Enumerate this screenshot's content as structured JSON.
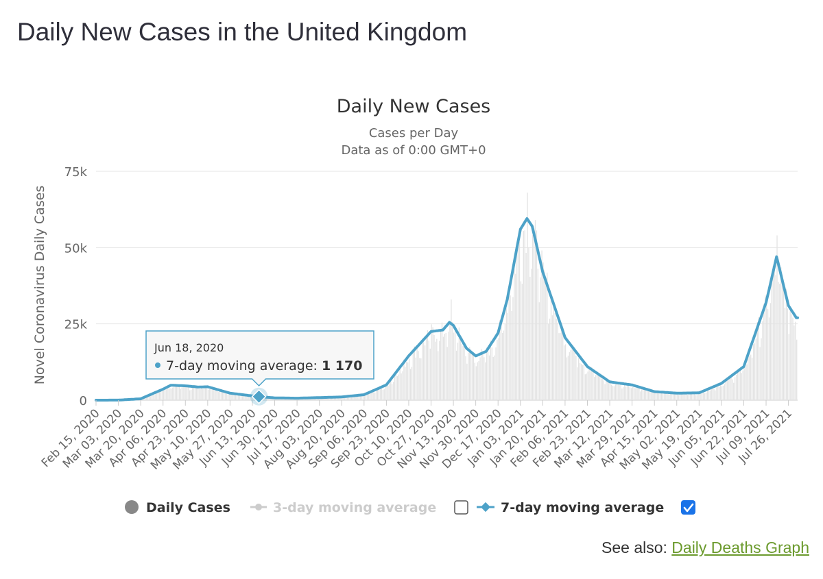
{
  "page_title": "Daily New Cases in the United Kingdom",
  "see_also": {
    "prefix": "See also:",
    "link_text": "Daily Deaths Graph"
  },
  "colors": {
    "bars": "#e3e3e3",
    "line": "#4da2c8",
    "grid": "#e6e6e6",
    "legend_active": "#333333",
    "legend_inactive": "#cccccc",
    "checkbox_checked": "#1a73e8"
  },
  "tooltip": {
    "date": "Jun 18, 2020",
    "series": "7-day moving average",
    "value_text": "1 170",
    "x": "2020-06-18",
    "y": 1170
  },
  "legend": [
    {
      "label": "Daily Cases",
      "marker": "circle",
      "active": true,
      "checkbox": null
    },
    {
      "label": "3-day moving average",
      "marker": "circle-line",
      "active": false,
      "checkbox": false
    },
    {
      "label": "7-day moving average",
      "marker": "diamond-line",
      "active": true,
      "checkbox": true
    }
  ],
  "chart_data": {
    "type": "bar",
    "title": "Daily New Cases",
    "subtitle": [
      "Cases per Day",
      "Data as of 0:00 GMT+0"
    ],
    "xlabel": "",
    "ylabel": "Novel Coronavirus Daily Cases",
    "ylim": [
      0,
      75000
    ],
    "yticks": [
      0,
      25000,
      50000,
      75000
    ],
    "ytick_labels": [
      "0",
      "25k",
      "50k",
      "75k"
    ],
    "xlim": [
      "2020-02-15",
      "2021-08-02"
    ],
    "x_tick_labels": [
      "Feb 15, 2020",
      "Mar 03, 2020",
      "Mar 20, 2020",
      "Apr 06, 2020",
      "Apr 23, 2020",
      "May 10, 2020",
      "May 27, 2020",
      "Jun 13, 2020",
      "Jun 30, 2020",
      "Jul 17, 2020",
      "Aug 03, 2020",
      "Aug 20, 2020",
      "Sep 06, 2020",
      "Sep 23, 2020",
      "Oct 10, 2020",
      "Oct 27, 2020",
      "Nov 13, 2020",
      "Nov 30, 2020",
      "Dec 17, 2020",
      "Jan 03, 2021",
      "Jan 20, 2021",
      "Feb 06, 2021",
      "Feb 23, 2021",
      "Mar 12, 2021",
      "Mar 29, 2021",
      "Apr 15, 2021",
      "May 02, 2021",
      "May 19, 2021",
      "Jun 05, 2021",
      "Jun 22, 2021",
      "Jul 09, 2021",
      "Jul 26, 2021"
    ],
    "grid": true,
    "legend_position": "bottom",
    "series": [
      {
        "name": "7-day moving average",
        "kind": "line",
        "points": [
          [
            "2020-02-15",
            0
          ],
          [
            "2020-03-03",
            20
          ],
          [
            "2020-03-20",
            450
          ],
          [
            "2020-04-06",
            3600
          ],
          [
            "2020-04-12",
            4900
          ],
          [
            "2020-04-23",
            4700
          ],
          [
            "2020-05-03",
            4300
          ],
          [
            "2020-05-10",
            4400
          ],
          [
            "2020-05-27",
            2300
          ],
          [
            "2020-06-13",
            1400
          ],
          [
            "2020-06-18",
            1170
          ],
          [
            "2020-06-30",
            750
          ],
          [
            "2020-07-17",
            650
          ],
          [
            "2020-08-03",
            850
          ],
          [
            "2020-08-20",
            1050
          ],
          [
            "2020-09-06",
            1800
          ],
          [
            "2020-09-23",
            5000
          ],
          [
            "2020-10-10",
            14500
          ],
          [
            "2020-10-27",
            22500
          ],
          [
            "2020-11-05",
            23000
          ],
          [
            "2020-11-10",
            25500
          ],
          [
            "2020-11-13",
            24500
          ],
          [
            "2020-11-23",
            17000
          ],
          [
            "2020-11-30",
            14500
          ],
          [
            "2020-12-08",
            16000
          ],
          [
            "2020-12-17",
            22000
          ],
          [
            "2020-12-24",
            33000
          ],
          [
            "2021-01-03",
            56000
          ],
          [
            "2021-01-08",
            59500
          ],
          [
            "2021-01-12",
            57000
          ],
          [
            "2021-01-20",
            42000
          ],
          [
            "2021-02-06",
            20500
          ],
          [
            "2021-02-23",
            11000
          ],
          [
            "2021-03-12",
            6000
          ],
          [
            "2021-03-29",
            5000
          ],
          [
            "2021-04-15",
            2800
          ],
          [
            "2021-05-02",
            2300
          ],
          [
            "2021-05-19",
            2400
          ],
          [
            "2021-06-05",
            5500
          ],
          [
            "2021-06-22",
            11000
          ],
          [
            "2021-07-09",
            32000
          ],
          [
            "2021-07-17",
            47000
          ],
          [
            "2021-07-26",
            31000
          ],
          [
            "2021-08-01",
            27000
          ]
        ]
      },
      {
        "name": "Daily Cases",
        "kind": "bar",
        "peaks": [
          [
            "2020-11-11",
            33000
          ],
          [
            "2021-01-08",
            68000
          ],
          [
            "2021-07-17",
            54000
          ]
        ]
      }
    ]
  }
}
